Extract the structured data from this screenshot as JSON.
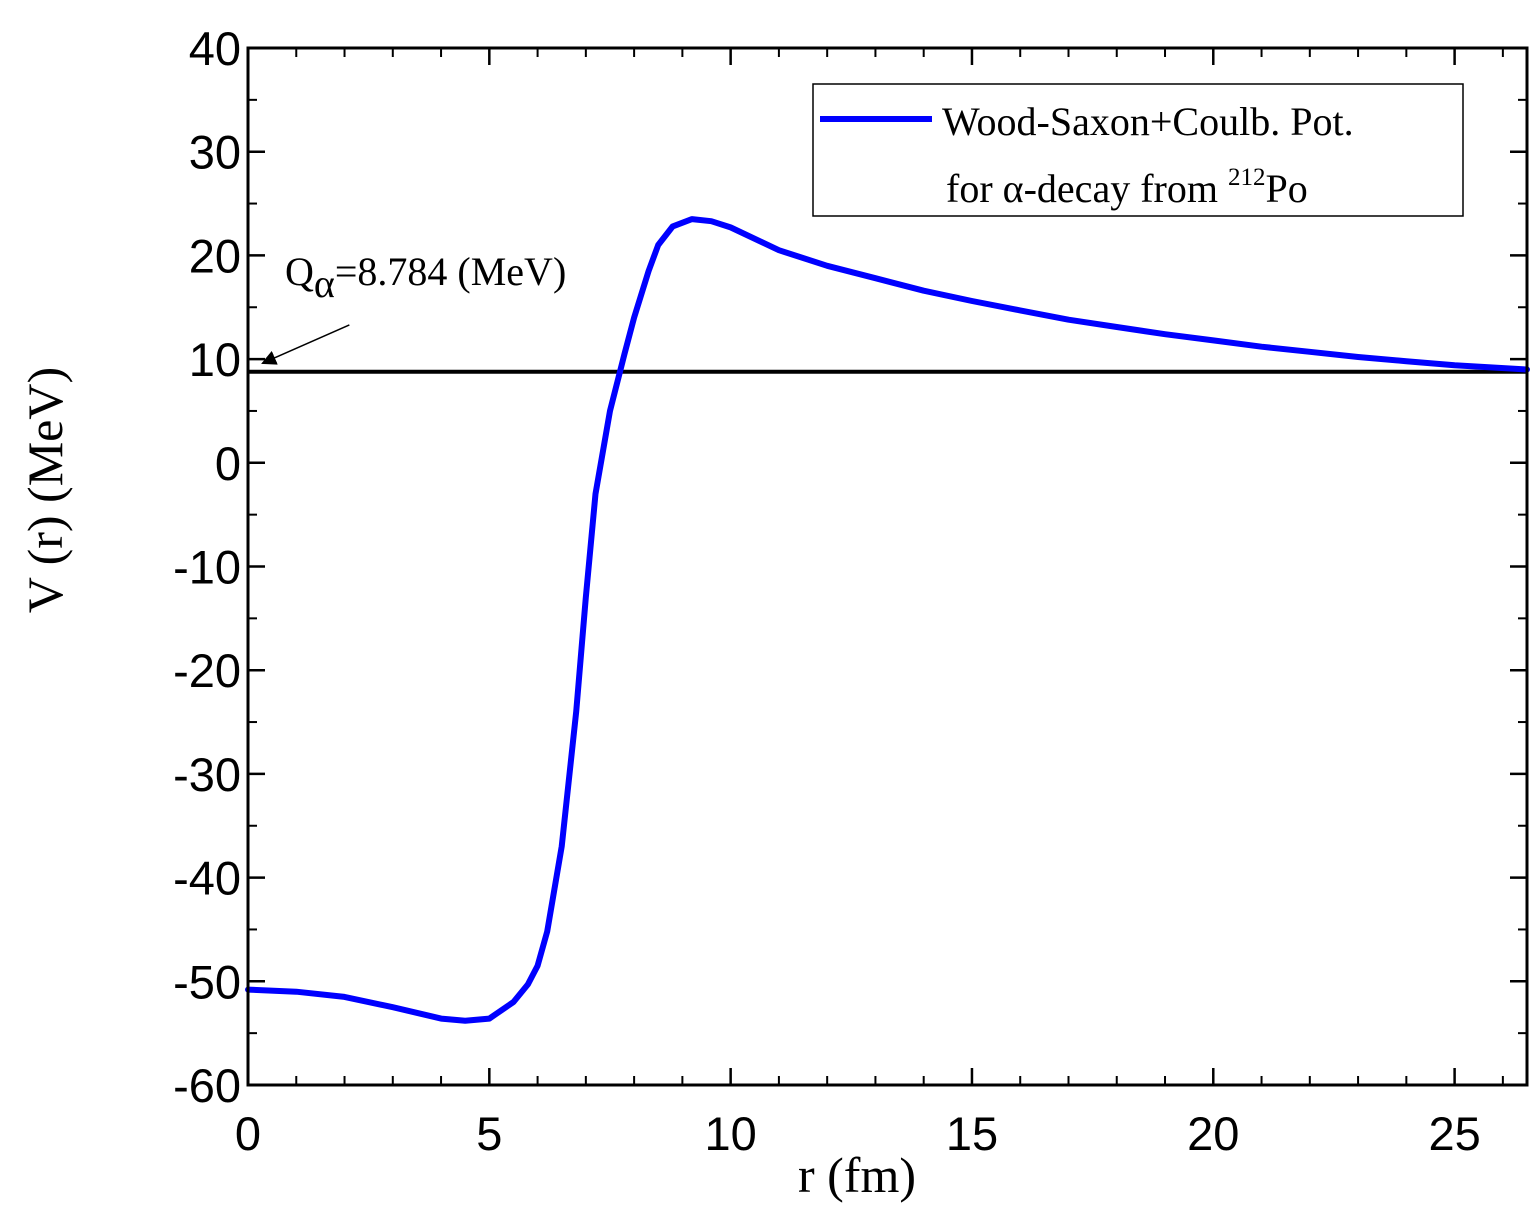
{
  "chart_data": {
    "type": "line",
    "xlabel": "r (fm)",
    "ylabel": "V (r) (MeV)",
    "xlim": [
      0,
      26.5
    ],
    "ylim": [
      -60,
      40
    ],
    "xticks": [
      0,
      5,
      10,
      15,
      20,
      25
    ],
    "yticks": [
      -60,
      -50,
      -40,
      -30,
      -20,
      -10,
      0,
      10,
      20,
      30,
      40
    ],
    "x_tick_labels": [
      "0",
      "5",
      "10",
      "15",
      "20",
      "25"
    ],
    "y_tick_labels": [
      "-60",
      "-50",
      "-40",
      "-30",
      "-20",
      "-10",
      "0",
      "10",
      "20",
      "30",
      "40"
    ],
    "grid": false,
    "legend_position": "top-right",
    "legend": {
      "line1": "Wood-Saxon+Coulb. Pot.",
      "line2_prefix": "for ",
      "line2_alpha": "α",
      "line2_mid": "-decay from ",
      "line2_sup": "212",
      "line2_suffix": "Po"
    },
    "series": [
      {
        "color": "#0000ff",
        "x": [
          0,
          1,
          2,
          3,
          4,
          4.5,
          5,
          5.5,
          5.8,
          6,
          6.2,
          6.5,
          6.8,
          7.0,
          7.2,
          7.5,
          7.8,
          8.0,
          8.3,
          8.5,
          8.8,
          9.2,
          9.6,
          10,
          11,
          12,
          13,
          14,
          15,
          16,
          17,
          18,
          19,
          20,
          21,
          22,
          23,
          24,
          25,
          26.5
        ],
        "y": [
          -50.8,
          -51.0,
          -51.5,
          -52.5,
          -53.6,
          -53.8,
          -53.6,
          -52.0,
          -50.3,
          -48.5,
          -45.2,
          -37.0,
          -24.0,
          -13.0,
          -3.0,
          5.0,
          10.5,
          14.0,
          18.5,
          21.0,
          22.8,
          23.5,
          23.3,
          22.7,
          20.5,
          19.0,
          17.8,
          16.6,
          15.6,
          14.7,
          13.8,
          13.1,
          12.4,
          11.8,
          11.2,
          10.7,
          10.2,
          9.8,
          9.4,
          9.0
        ]
      }
    ],
    "reference_line": {
      "y": 8.784,
      "color": "#000000"
    },
    "annotation": {
      "prefix": "Q",
      "subscript": "α",
      "text": "=8.784 (MeV)",
      "arrow_to": [
        0.3,
        9.6
      ],
      "arrow_from": [
        2.1,
        13.3
      ]
    }
  }
}
